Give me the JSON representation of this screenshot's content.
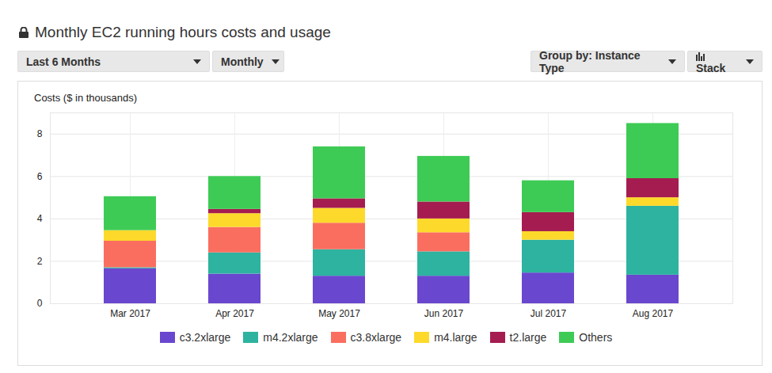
{
  "controls": [
    "Last 6 Months",
    "Monthly",
    "Group by: Instance Type",
    "Stack"
  ],
  "chart_data": {
    "type": "bar",
    "stacked": true,
    "grid": true,
    "legend": "bottom",
    "title": "Monthly EC2 running hours costs and usage",
    "y_label": "Costs ($ in thousands)",
    "categories": [
      "Mar 2017",
      "Apr 2017",
      "May 2017",
      "Jun 2017",
      "Jul 2017",
      "Aug 2017"
    ],
    "series": [
      {
        "name": "c3.2xlarge",
        "color": "#6a47cf",
        "values": [
          1.65,
          1.4,
          1.3,
          1.3,
          1.45,
          1.35
        ]
      },
      {
        "name": "m4.2xlarge",
        "color": "#2db3a0",
        "values": [
          0.05,
          1.0,
          1.25,
          1.15,
          1.55,
          3.25
        ]
      },
      {
        "name": "c3.8xlarge",
        "color": "#fa6e60",
        "values": [
          1.25,
          1.2,
          1.25,
          0.9,
          0,
          0
        ]
      },
      {
        "name": "m4.large",
        "color": "#fdd92b",
        "values": [
          0.5,
          0.65,
          0.7,
          0.65,
          0.4,
          0.4
        ]
      },
      {
        "name": "t2.large",
        "color": "#a51c50",
        "values": [
          0,
          0.2,
          0.45,
          0.8,
          0.9,
          0.9
        ]
      },
      {
        "name": "Others",
        "color": "#3ecb55",
        "values": [
          1.6,
          1.55,
          2.45,
          2.15,
          1.5,
          2.6
        ]
      }
    ],
    "ylim": [
      0,
      9
    ],
    "yticks": [
      0,
      2,
      4,
      6,
      8
    ]
  }
}
